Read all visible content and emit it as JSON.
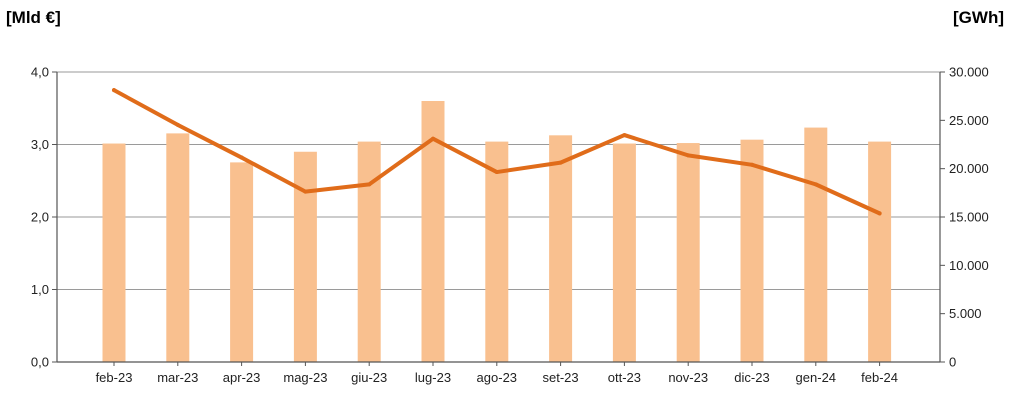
{
  "chart_data": {
    "type": "bar+line",
    "y_left_label": "[Mld €]",
    "y_right_label": "[GWh]",
    "categories": [
      "feb-23",
      "mar-23",
      "apr-23",
      "mag-23",
      "giu-23",
      "lug-23",
      "ago-23",
      "set-23",
      "ott-23",
      "nov-23",
      "dic-23",
      "gen-24",
      "feb-24"
    ],
    "series": [
      {
        "type": "bar",
        "axis": "right",
        "color": "#f9c08f",
        "values": [
          22600,
          23650,
          20650,
          21750,
          22800,
          27000,
          22800,
          23450,
          22600,
          22650,
          23000,
          24250,
          22800
        ]
      },
      {
        "type": "line",
        "axis": "left",
        "color": "#e06c1a",
        "values": [
          3.75,
          3.27,
          2.82,
          2.35,
          2.45,
          3.08,
          2.62,
          2.75,
          3.13,
          2.85,
          2.72,
          2.45,
          2.05
        ]
      }
    ],
    "y_left_ticks": [
      "0,0",
      "1,0",
      "2,0",
      "3,0",
      "4,0"
    ],
    "y_left_range": [
      0,
      4
    ],
    "y_right_ticks": [
      "0",
      "5.000",
      "10.000",
      "15.000",
      "20.000",
      "25.000",
      "30.000"
    ],
    "y_right_range": [
      0,
      30000
    ],
    "grid": true,
    "legend": "none"
  }
}
